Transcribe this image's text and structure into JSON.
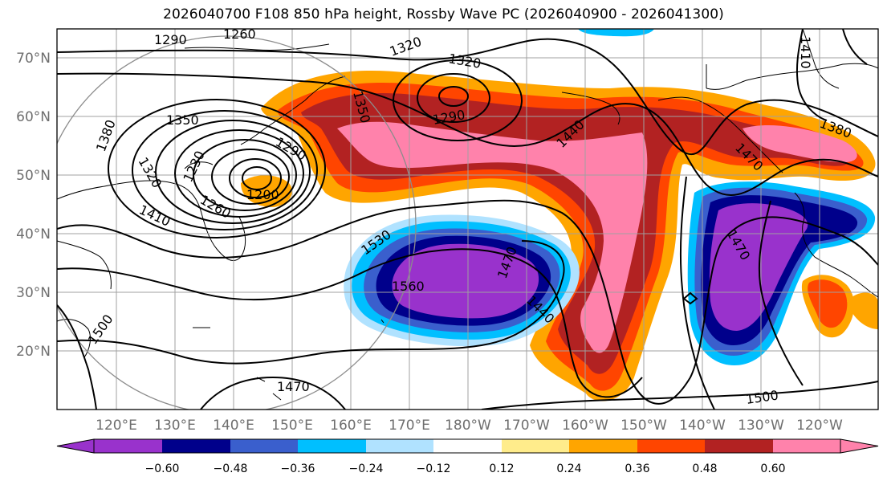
{
  "title": "2026040700 F108 850 hPa height, Rossby Wave PC (2026040900 - 2026041300)",
  "map": {
    "lon_ticks": [
      "120°E",
      "130°E",
      "140°E",
      "150°E",
      "160°E",
      "170°E",
      "180°W",
      "170°W",
      "160°W",
      "150°W",
      "140°W",
      "130°W",
      "120°W"
    ],
    "lat_ticks": [
      "70°N",
      "60°N",
      "50°N",
      "40°N",
      "30°N",
      "20°N"
    ]
  },
  "colorbar": {
    "tick_labels": [
      "−0.60",
      "−0.48",
      "−0.36",
      "−0.24",
      "−0.12",
      "0.12",
      "0.24",
      "0.36",
      "0.48",
      "0.60"
    ],
    "colors": [
      "#9932cc",
      "#00008b",
      "#3a5fcd",
      "#00bfff",
      "#b0e2ff",
      "#ffffff",
      "#ffec8b",
      "#ffa500",
      "#ff4500",
      "#b22222",
      "#ff82ab"
    ]
  },
  "contour_labels": [
    "1290",
    "1260",
    "1320",
    "1320",
    "1350",
    "1290",
    "1380",
    "1350",
    "1290",
    "1320",
    "1230",
    "1260",
    "1200",
    "1410",
    "1530",
    "1440",
    "1470",
    "1380",
    "1410",
    "1470",
    "1560",
    "1440",
    "1470",
    "1500",
    "1470",
    "1500"
  ],
  "chart_data": {
    "type": "contour map",
    "title": "2026040700 F108 850 hPa height, Rossby Wave PC (2026040900 - 2026041300)",
    "x_ticks": [
      "120°E",
      "130°E",
      "140°E",
      "150°E",
      "160°E",
      "170°E",
      "180°W",
      "170°W",
      "160°W",
      "150°W",
      "140°W",
      "130°W",
      "120°W"
    ],
    "y_ticks": [
      "70°N",
      "60°N",
      "50°N",
      "40°N",
      "30°N",
      "20°N"
    ],
    "colorbar_levels": [
      -0.6,
      -0.48,
      -0.36,
      -0.24,
      -0.12,
      0.12,
      0.24,
      0.36,
      0.48,
      0.6
    ],
    "contour_levels_labeled": [
      1200,
      1230,
      1260,
      1290,
      1320,
      1350,
      1380,
      1410,
      1440,
      1470,
      1500,
      1530,
      1560
    ]
  }
}
